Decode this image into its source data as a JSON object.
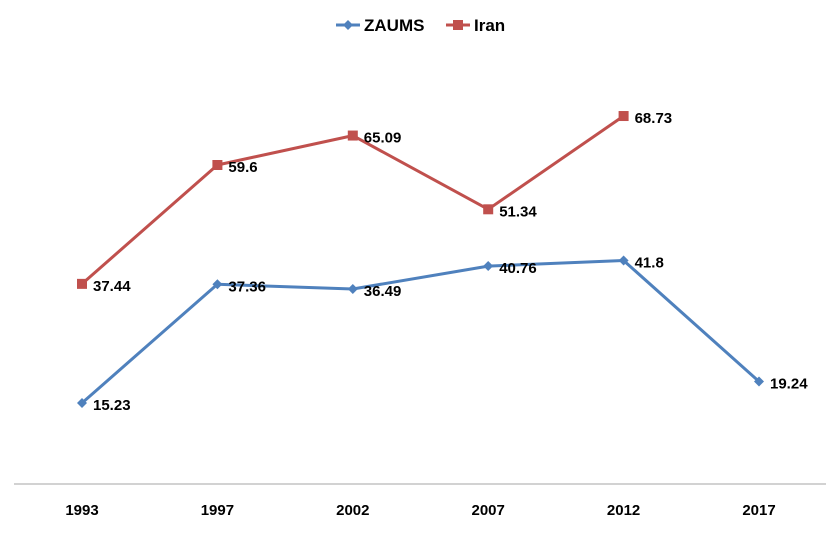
{
  "chart_data": {
    "type": "line",
    "categories": [
      "1993",
      "1997",
      "2002",
      "2007",
      "2012",
      "2017"
    ],
    "series": [
      {
        "name": "ZAUMS",
        "values": [
          15.23,
          37.36,
          36.49,
          40.76,
          41.8,
          19.24
        ],
        "labels": [
          "15.23",
          "37.36",
          "36.49",
          "40.76",
          "41.8",
          "19.24"
        ],
        "color": "#4F81BD",
        "marker": "diamond"
      },
      {
        "name": "Iran",
        "values": [
          37.44,
          59.6,
          65.09,
          51.34,
          68.73,
          null
        ],
        "labels": [
          "37.44",
          "59.6",
          "65.09",
          "51.34",
          "68.73",
          null
        ],
        "color": "#C0504D",
        "marker": "square"
      }
    ],
    "ylim": [
      0,
      80
    ],
    "grid": false,
    "legend": "top-center",
    "title": "",
    "xlabel": "",
    "ylabel": ""
  }
}
